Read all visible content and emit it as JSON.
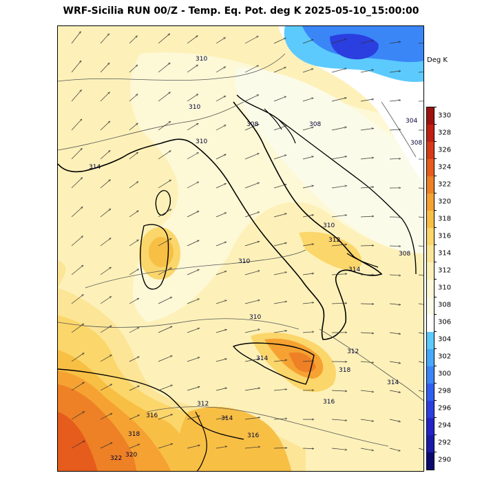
{
  "title": "WRF-Sicilia RUN 00/Z - Temp. Eq. Pot. deg K 2025-05-10_15:00:00",
  "colorbar": {
    "unit": "Deg K",
    "levels": [
      "290",
      "292",
      "294",
      "296",
      "298",
      "300",
      "302",
      "304",
      "306",
      "308",
      "310",
      "312",
      "314",
      "316",
      "318",
      "320",
      "322",
      "324",
      "326",
      "328",
      "330"
    ],
    "colors": [
      "#0a0a6e",
      "#1a1aa8",
      "#2323c8",
      "#2b3ee0",
      "#2f5ff0",
      "#3a86f7",
      "#46a9fb",
      "#5ccafd",
      "#ffffff",
      "#fbfbe9",
      "#fdf8d6",
      "#fdf1b9",
      "#fce596",
      "#fbd66a",
      "#f8bf45",
      "#f5a232",
      "#ee8025",
      "#e65c1c",
      "#d83a17",
      "#c11f12",
      "#9e120d"
    ]
  },
  "contour_labels": [
    "310",
    "310",
    "310",
    "308",
    "308",
    "304",
    "308",
    "314",
    "310",
    "312",
    "308",
    "314",
    "310",
    "310",
    "312",
    "314",
    "318",
    "316",
    "314",
    "312",
    "314",
    "316",
    "316",
    "318",
    "320",
    "322"
  ],
  "map": {
    "region": "Italy / Central Mediterranean",
    "field": "Equivalent potential temperature",
    "units": "K"
  }
}
